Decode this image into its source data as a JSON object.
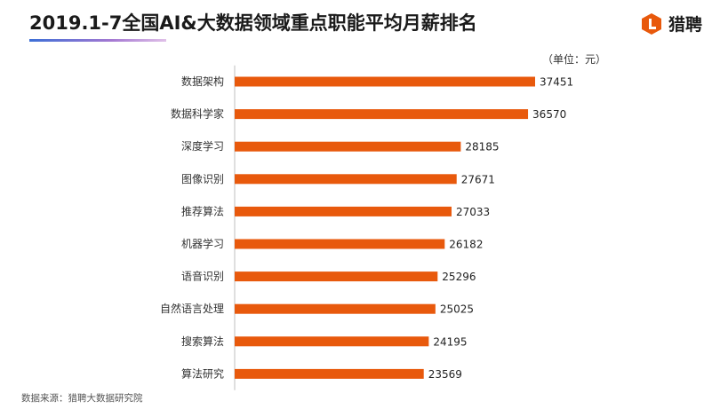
{
  "header": {
    "title": "2019.1-7全国AI&大数据领域重点职能平均月薪排名",
    "logo_text": "猎聘",
    "logo_icon": "liepin-logo-icon"
  },
  "unit_label": "（单位：元）",
  "source": "数据来源：猎聘大数据研究院",
  "colors": {
    "bar": "#e8590c",
    "logo": "#e8590c"
  },
  "chart_data": {
    "type": "bar",
    "orientation": "horizontal",
    "title": "2019.1-7全国AI&大数据领域重点职能平均月薪排名",
    "xlabel": "",
    "ylabel": "",
    "unit": "元",
    "categories": [
      "数据架构",
      "数据科学家",
      "深度学习",
      "图像识别",
      "推荐算法",
      "机器学习",
      "语音识别",
      "自然语言处理",
      "搜索算法",
      "算法研究"
    ],
    "values": [
      37451,
      36570,
      28185,
      27671,
      27033,
      26182,
      25296,
      25025,
      24195,
      23569
    ],
    "xlim": [
      0,
      37451
    ],
    "grid": false,
    "legend": "none",
    "data_labels": true
  }
}
